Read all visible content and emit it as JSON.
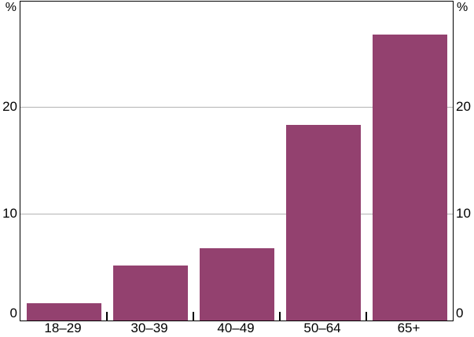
{
  "chart_data": {
    "type": "bar",
    "title": "",
    "categories": [
      "18–29",
      "30–39",
      "40–49",
      "50–64",
      "65+"
    ],
    "values": [
      1.6,
      5.2,
      6.8,
      18.4,
      26.9
    ],
    "xlabel": "",
    "ylabel_left": "%",
    "ylabel_right": "%",
    "ylim": [
      0,
      30
    ],
    "yticks": [
      0,
      10,
      20
    ],
    "grid": true,
    "legend": false,
    "bar_color": "#93416F",
    "gridline_color": "#b3b3b3",
    "axis_color": "#000000"
  }
}
